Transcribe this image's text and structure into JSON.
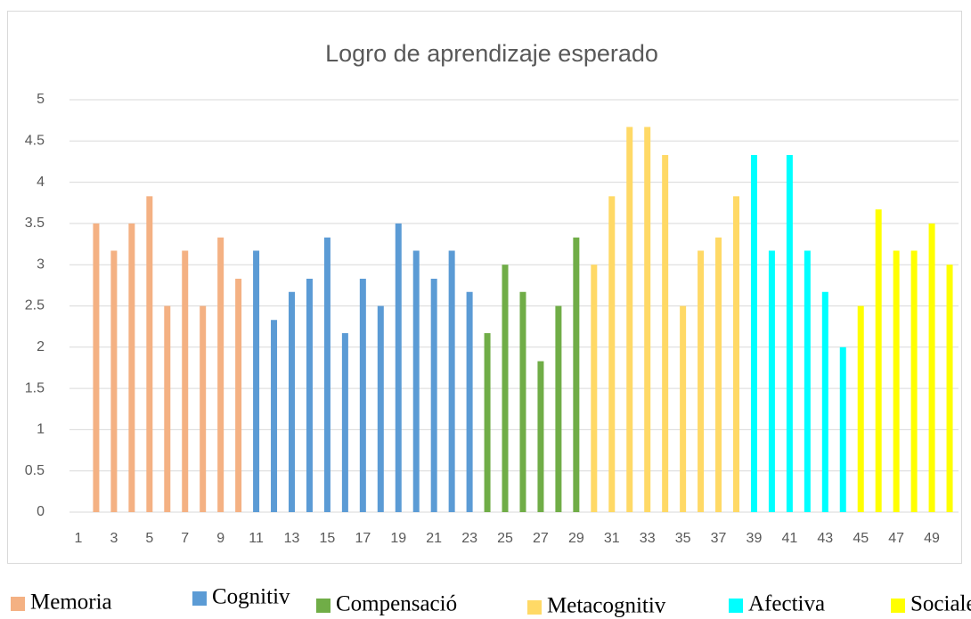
{
  "chart_data": {
    "type": "bar",
    "title": "Logro de aprendizaje esperado",
    "categories": [
      "1",
      null,
      "3",
      null,
      "5",
      null,
      "7",
      null,
      "9",
      null,
      "11",
      null,
      "13",
      null,
      "15",
      null,
      "17",
      null,
      "19",
      null,
      "21",
      null,
      "23",
      null,
      "25",
      null,
      "27",
      null,
      "29",
      null,
      "31",
      null,
      "33",
      null,
      "35",
      null,
      "37",
      null,
      "39",
      null,
      "41",
      null,
      "43",
      null,
      "45",
      null,
      "47",
      null,
      "49",
      null
    ],
    "series": [
      {
        "name": "Memoria",
        "color": "#f4b183",
        "values": [
          null,
          3.5,
          3.17,
          3.5,
          3.83,
          2.5,
          3.17,
          2.5,
          3.33,
          2.83,
          null,
          null,
          null,
          null,
          null,
          null,
          null,
          null,
          null,
          null,
          null,
          null,
          null,
          null,
          null,
          null,
          null,
          null,
          null,
          null,
          null,
          null,
          null,
          null,
          null,
          null,
          null,
          null,
          null,
          null,
          null,
          null,
          null,
          null,
          null,
          null,
          null,
          null,
          null,
          null
        ]
      },
      {
        "name": "Cognitiv",
        "color": "#5b9bd5",
        "values": [
          null,
          null,
          null,
          null,
          null,
          null,
          null,
          null,
          null,
          null,
          3.17,
          2.33,
          2.67,
          2.83,
          3.33,
          2.17,
          2.83,
          2.5,
          3.5,
          3.17,
          2.83,
          3.17,
          2.67,
          null,
          null,
          null,
          null,
          null,
          null,
          null,
          null,
          null,
          null,
          null,
          null,
          null,
          null,
          null,
          null,
          null,
          null,
          null,
          null,
          null,
          null,
          null,
          null,
          null,
          null,
          null
        ]
      },
      {
        "name": "Compensació",
        "color": "#70ad47",
        "values": [
          null,
          null,
          null,
          null,
          null,
          null,
          null,
          null,
          null,
          null,
          null,
          null,
          null,
          null,
          null,
          null,
          null,
          null,
          null,
          null,
          null,
          null,
          null,
          2.17,
          3.0,
          2.67,
          1.83,
          2.5,
          3.33,
          null,
          null,
          null,
          null,
          null,
          null,
          null,
          null,
          null,
          null,
          null,
          null,
          null,
          null,
          null,
          null,
          null,
          null,
          null,
          null,
          null
        ]
      },
      {
        "name": "Metacognitiv",
        "color": "#ffd966",
        "values": [
          null,
          null,
          null,
          null,
          null,
          null,
          null,
          null,
          null,
          null,
          null,
          null,
          null,
          null,
          null,
          null,
          null,
          null,
          null,
          null,
          null,
          null,
          null,
          null,
          null,
          null,
          null,
          null,
          null,
          3.0,
          3.83,
          4.67,
          4.67,
          4.33,
          2.5,
          3.17,
          3.33,
          3.83,
          null,
          null,
          null,
          null,
          null,
          null,
          null,
          null,
          null,
          null,
          null,
          null
        ]
      },
      {
        "name": "Afectiva",
        "color": "#00ffff",
        "values": [
          null,
          null,
          null,
          null,
          null,
          null,
          null,
          null,
          null,
          null,
          null,
          null,
          null,
          null,
          null,
          null,
          null,
          null,
          null,
          null,
          null,
          null,
          null,
          null,
          null,
          null,
          null,
          null,
          null,
          null,
          null,
          null,
          null,
          null,
          null,
          null,
          null,
          null,
          4.33,
          3.17,
          4.33,
          3.17,
          2.67,
          2.0,
          null,
          null,
          null,
          null,
          null,
          null
        ]
      },
      {
        "name": "Sociale",
        "color": "#ffff00",
        "values": [
          null,
          null,
          null,
          null,
          null,
          null,
          null,
          null,
          null,
          null,
          null,
          null,
          null,
          null,
          null,
          null,
          null,
          null,
          null,
          null,
          null,
          null,
          null,
          null,
          null,
          null,
          null,
          null,
          null,
          null,
          null,
          null,
          null,
          null,
          null,
          null,
          null,
          null,
          null,
          null,
          null,
          null,
          null,
          null,
          2.5,
          3.67,
          3.17,
          3.17,
          3.5,
          3.0
        ]
      }
    ],
    "ylim": [
      0,
      5
    ],
    "yticks": [
      0,
      0.5,
      1,
      1.5,
      2,
      2.5,
      3,
      3.5,
      4,
      4.5,
      5
    ],
    "grid": true
  }
}
